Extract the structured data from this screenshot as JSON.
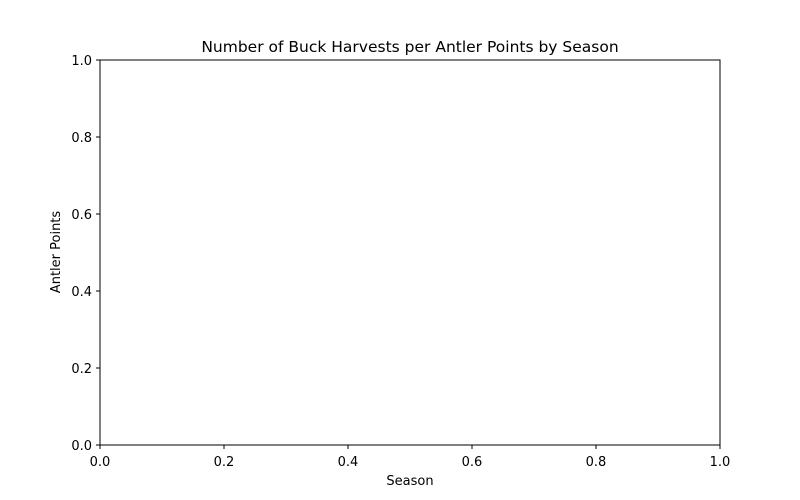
{
  "chart_data": {
    "type": "scatter",
    "title": "Number of Buck Harvests per Antler Points by Season",
    "xlabel": "Season",
    "ylabel": "Antler Points",
    "xlim": [
      0.0,
      1.0
    ],
    "ylim": [
      0.0,
      1.0
    ],
    "x_ticks": [
      "0.0",
      "0.2",
      "0.4",
      "0.6",
      "0.8",
      "1.0"
    ],
    "y_ticks": [
      "0.0",
      "0.2",
      "0.4",
      "0.6",
      "0.8",
      "1.0"
    ],
    "series": [],
    "grid": false,
    "legend": "none"
  }
}
